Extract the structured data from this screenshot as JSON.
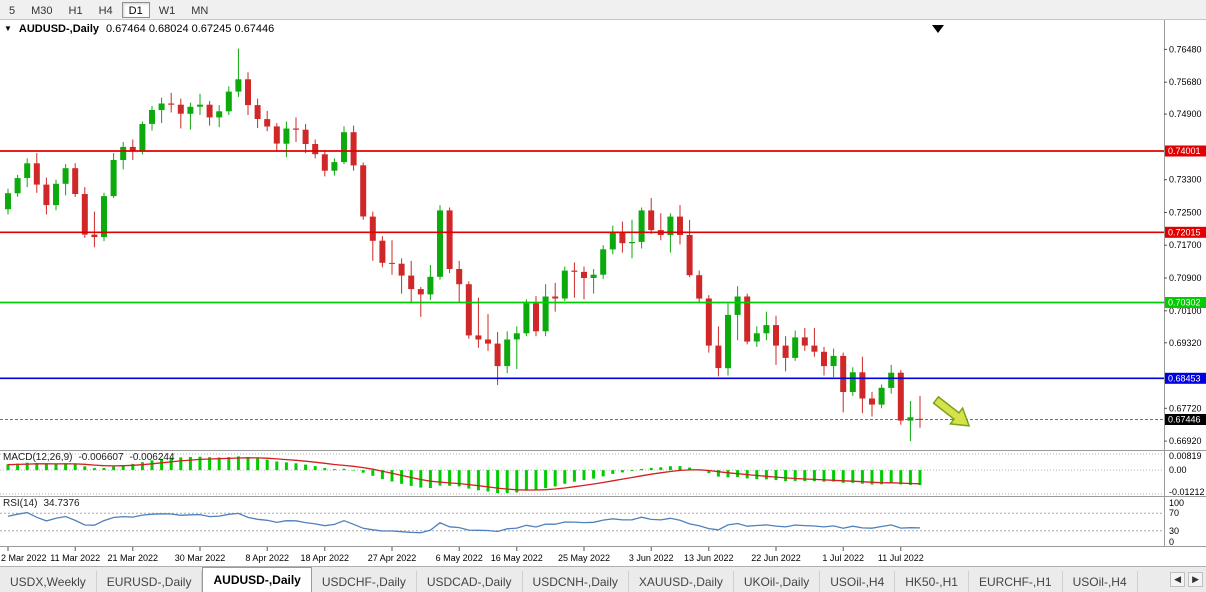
{
  "toolbar": {
    "periods": [
      {
        "label": "5",
        "active": false
      },
      {
        "label": "M30",
        "active": false
      },
      {
        "label": "H1",
        "active": false
      },
      {
        "label": "H4",
        "active": false
      },
      {
        "label": "D1",
        "active": true
      },
      {
        "label": "W1",
        "active": false
      },
      {
        "label": "MN",
        "active": false
      }
    ]
  },
  "chart": {
    "symbol_label": "AUDUSD-,Daily",
    "ohlc_text": "0.67464 0.68024 0.67245 0.67446"
  },
  "colors": {
    "candle_up": "#0caa0c",
    "candle_down": "#d02828",
    "macd_histogram": "#00cc00",
    "macd_signal": "#d42020",
    "rsi_line": "#4f81bd",
    "axis_text": "#000000",
    "badge_text": "#ffffff",
    "bid_line": "#707070",
    "grid_dotted": "#b5b5b5",
    "tick": "#555555"
  },
  "chart_data": {
    "type": "candlestick",
    "title": "AUDUSD-,Daily",
    "ylim": [
      0.668,
      0.771
    ],
    "price_ticks": [
      "0.76480",
      "0.75680",
      "0.74900",
      "0.73300",
      "0.72500",
      "0.71700",
      "0.70900",
      "0.70100",
      "0.69320",
      "0.67720",
      "0.66920"
    ],
    "price_badges": [
      {
        "label": "0.74001",
        "price": 0.74001,
        "color": "#e00000"
      },
      {
        "label": "0.72015",
        "price": 0.72015,
        "color": "#e00000"
      },
      {
        "label": "0.70302",
        "price": 0.70302,
        "color": "#00cc00"
      },
      {
        "label": "0.68453",
        "price": 0.68453,
        "color": "#0000e0"
      },
      {
        "label": "0.67446",
        "price": 0.67446,
        "color": "#000000"
      }
    ],
    "hlines": [
      {
        "price": 0.74001,
        "color": "#e00000"
      },
      {
        "price": 0.72015,
        "color": "#e00000"
      },
      {
        "price": 0.70302,
        "color": "#00cc00"
      },
      {
        "price": 0.68453,
        "color": "#0000e0"
      }
    ],
    "bid_line": {
      "price": 0.67446
    },
    "annotations": [
      {
        "type": "arrow-down-right",
        "x": 936,
        "y": 380,
        "rotation": 38,
        "fill": "#d6e24a",
        "stroke": "#7aa21c"
      }
    ],
    "x_ticks": [
      {
        "label": "2 Mar 2022",
        "i": 0
      },
      {
        "label": "11 Mar 2022",
        "i": 7
      },
      {
        "label": "21 Mar 2022",
        "i": 13
      },
      {
        "label": "30 Mar 2022",
        "i": 20
      },
      {
        "label": "8 Apr 2022",
        "i": 27
      },
      {
        "label": "18 Apr 2022",
        "i": 33
      },
      {
        "label": "27 Apr 2022",
        "i": 40
      },
      {
        "label": "6 May 2022",
        "i": 47
      },
      {
        "label": "16 May 2022",
        "i": 53
      },
      {
        "label": "25 May 2022",
        "i": 60
      },
      {
        "label": "3 Jun 2022",
        "i": 67
      },
      {
        "label": "13 Jun 2022",
        "i": 73
      },
      {
        "label": "22 Jun 2022",
        "i": 80
      },
      {
        "label": "1 Jul 2022",
        "i": 87
      },
      {
        "label": "11 Jul 2022",
        "i": 93
      }
    ],
    "candles": [
      [
        "2022-03-02",
        0.7258,
        0.7308,
        0.7245,
        0.7297
      ],
      [
        "2022-03-03",
        0.7297,
        0.7342,
        0.7288,
        0.7334
      ],
      [
        "2022-03-04",
        0.7334,
        0.7382,
        0.7312,
        0.737
      ],
      [
        "2022-03-07",
        0.737,
        0.7395,
        0.7298,
        0.7318
      ],
      [
        "2022-03-08",
        0.7318,
        0.7335,
        0.7245,
        0.7268
      ],
      [
        "2022-03-09",
        0.7268,
        0.733,
        0.7255,
        0.732
      ],
      [
        "2022-03-10",
        0.732,
        0.7368,
        0.7292,
        0.7358
      ],
      [
        "2022-03-11",
        0.7358,
        0.737,
        0.7288,
        0.7295
      ],
      [
        "2022-03-14",
        0.7295,
        0.7312,
        0.7188,
        0.7196
      ],
      [
        "2022-03-15",
        0.7196,
        0.7252,
        0.7165,
        0.719
      ],
      [
        "2022-03-16",
        0.719,
        0.7298,
        0.718,
        0.729
      ],
      [
        "2022-03-17",
        0.729,
        0.7395,
        0.7285,
        0.7378
      ],
      [
        "2022-03-18",
        0.7378,
        0.7422,
        0.7355,
        0.741
      ],
      [
        "2022-03-21",
        0.741,
        0.7428,
        0.7378,
        0.74
      ],
      [
        "2022-03-22",
        0.74,
        0.7472,
        0.7392,
        0.7466
      ],
      [
        "2022-03-23",
        0.7466,
        0.751,
        0.745,
        0.75
      ],
      [
        "2022-03-24",
        0.75,
        0.753,
        0.7468,
        0.7516
      ],
      [
        "2022-03-25",
        0.7516,
        0.7542,
        0.7494,
        0.7513
      ],
      [
        "2022-03-28",
        0.7513,
        0.7528,
        0.7455,
        0.7491
      ],
      [
        "2022-03-29",
        0.7491,
        0.7518,
        0.7452,
        0.7508
      ],
      [
        "2022-03-30",
        0.7508,
        0.754,
        0.7488,
        0.7513
      ],
      [
        "2022-03-31",
        0.7513,
        0.7522,
        0.7462,
        0.7482
      ],
      [
        "2022-04-01",
        0.7482,
        0.7512,
        0.7458,
        0.7497
      ],
      [
        "2022-04-04",
        0.7497,
        0.7558,
        0.7488,
        0.7545
      ],
      [
        "2022-04-05",
        0.7545,
        0.765,
        0.7532,
        0.7575
      ],
      [
        "2022-04-06",
        0.7575,
        0.7592,
        0.7488,
        0.7512
      ],
      [
        "2022-04-07",
        0.7512,
        0.7528,
        0.7456,
        0.7478
      ],
      [
        "2022-04-08",
        0.7478,
        0.7498,
        0.7448,
        0.746
      ],
      [
        "2022-04-11",
        0.746,
        0.7468,
        0.7398,
        0.7418
      ],
      [
        "2022-04-12",
        0.7418,
        0.7472,
        0.7385,
        0.7455
      ],
      [
        "2022-04-13",
        0.7455,
        0.7482,
        0.7422,
        0.7452
      ],
      [
        "2022-04-14",
        0.7452,
        0.7466,
        0.7395,
        0.7417
      ],
      [
        "2022-04-15",
        0.7417,
        0.7428,
        0.7382,
        0.7392
      ],
      [
        "2022-04-18",
        0.7392,
        0.7402,
        0.7338,
        0.7352
      ],
      [
        "2022-04-19",
        0.7352,
        0.7382,
        0.734,
        0.7373
      ],
      [
        "2022-04-20",
        0.7373,
        0.746,
        0.7368,
        0.7446
      ],
      [
        "2022-04-21",
        0.7446,
        0.7462,
        0.7352,
        0.7365
      ],
      [
        "2022-04-22",
        0.7365,
        0.7372,
        0.7232,
        0.724
      ],
      [
        "2022-04-25",
        0.724,
        0.7252,
        0.7132,
        0.7181
      ],
      [
        "2022-04-26",
        0.7181,
        0.7192,
        0.7116,
        0.7127
      ],
      [
        "2022-04-27",
        0.7127,
        0.7182,
        0.7098,
        0.7125
      ],
      [
        "2022-04-28",
        0.7125,
        0.7138,
        0.7052,
        0.7096
      ],
      [
        "2022-04-29",
        0.7096,
        0.7132,
        0.7028,
        0.7063
      ],
      [
        "2022-05-02",
        0.7063,
        0.7068,
        0.6995,
        0.705
      ],
      [
        "2022-05-03",
        0.705,
        0.7122,
        0.7036,
        0.7093
      ],
      [
        "2022-05-04",
        0.7093,
        0.7268,
        0.7086,
        0.7255
      ],
      [
        "2022-05-05",
        0.7255,
        0.7262,
        0.7102,
        0.7112
      ],
      [
        "2022-05-06",
        0.7112,
        0.7132,
        0.7032,
        0.7075
      ],
      [
        "2022-05-09",
        0.7075,
        0.7082,
        0.6942,
        0.695
      ],
      [
        "2022-05-10",
        0.695,
        0.7042,
        0.692,
        0.694
      ],
      [
        "2022-05-11",
        0.694,
        0.7002,
        0.6912,
        0.693
      ],
      [
        "2022-05-12",
        0.693,
        0.6958,
        0.6829,
        0.6875
      ],
      [
        "2022-05-13",
        0.6875,
        0.696,
        0.6858,
        0.694
      ],
      [
        "2022-05-16",
        0.694,
        0.6972,
        0.6868,
        0.6955
      ],
      [
        "2022-05-17",
        0.6955,
        0.7038,
        0.6948,
        0.7028
      ],
      [
        "2022-05-18",
        0.7028,
        0.7046,
        0.6948,
        0.696
      ],
      [
        "2022-05-19",
        0.696,
        0.7075,
        0.6948,
        0.7045
      ],
      [
        "2022-05-20",
        0.7045,
        0.7078,
        0.7008,
        0.704
      ],
      [
        "2022-05-23",
        0.704,
        0.7118,
        0.7034,
        0.7108
      ],
      [
        "2022-05-24",
        0.7108,
        0.7128,
        0.7042,
        0.7105
      ],
      [
        "2022-05-25",
        0.7105,
        0.7118,
        0.7038,
        0.709
      ],
      [
        "2022-05-26",
        0.709,
        0.7112,
        0.7052,
        0.7098
      ],
      [
        "2022-05-27",
        0.7098,
        0.717,
        0.7088,
        0.716
      ],
      [
        "2022-05-30",
        0.716,
        0.7218,
        0.7148,
        0.72
      ],
      [
        "2022-05-31",
        0.72,
        0.7228,
        0.7152,
        0.7175
      ],
      [
        "2022-06-01",
        0.7175,
        0.7232,
        0.7138,
        0.7178
      ],
      [
        "2022-06-02",
        0.7178,
        0.7262,
        0.7162,
        0.7255
      ],
      [
        "2022-06-03",
        0.7255,
        0.7285,
        0.7198,
        0.7207
      ],
      [
        "2022-06-06",
        0.7207,
        0.7248,
        0.7182,
        0.7195
      ],
      [
        "2022-06-07",
        0.7195,
        0.7248,
        0.7152,
        0.724
      ],
      [
        "2022-06-08",
        0.724,
        0.7268,
        0.7172,
        0.7195
      ],
      [
        "2022-06-09",
        0.7195,
        0.7232,
        0.7092,
        0.7097
      ],
      [
        "2022-06-10",
        0.7097,
        0.7108,
        0.7032,
        0.704
      ],
      [
        "2022-06-13",
        0.704,
        0.7048,
        0.6908,
        0.6925
      ],
      [
        "2022-06-14",
        0.6925,
        0.6972,
        0.685,
        0.687
      ],
      [
        "2022-06-15",
        0.687,
        0.7028,
        0.6852,
        0.7
      ],
      [
        "2022-06-16",
        0.7,
        0.707,
        0.6938,
        0.7045
      ],
      [
        "2022-06-17",
        0.7045,
        0.7052,
        0.6928,
        0.6935
      ],
      [
        "2022-06-20",
        0.6935,
        0.6972,
        0.6922,
        0.6955
      ],
      [
        "2022-06-21",
        0.6955,
        0.7008,
        0.6938,
        0.6975
      ],
      [
        "2022-06-22",
        0.6975,
        0.6998,
        0.6878,
        0.6925
      ],
      [
        "2022-06-23",
        0.6925,
        0.6948,
        0.6862,
        0.6895
      ],
      [
        "2022-06-24",
        0.6895,
        0.6962,
        0.6888,
        0.6945
      ],
      [
        "2022-06-27",
        0.6945,
        0.6968,
        0.6912,
        0.6925
      ],
      [
        "2022-06-28",
        0.6925,
        0.6968,
        0.6898,
        0.691
      ],
      [
        "2022-06-29",
        0.691,
        0.6922,
        0.6852,
        0.6875
      ],
      [
        "2022-06-30",
        0.6875,
        0.6918,
        0.6848,
        0.69
      ],
      [
        "2022-07-01",
        0.69,
        0.6908,
        0.6762,
        0.6812
      ],
      [
        "2022-07-04",
        0.6812,
        0.6872,
        0.6802,
        0.686
      ],
      [
        "2022-07-05",
        0.686,
        0.6898,
        0.676,
        0.6796
      ],
      [
        "2022-07-06",
        0.6796,
        0.6812,
        0.6752,
        0.6781
      ],
      [
        "2022-07-07",
        0.6781,
        0.683,
        0.6772,
        0.6822
      ],
      [
        "2022-07-08",
        0.6822,
        0.6878,
        0.6808,
        0.6859
      ],
      [
        "2022-07-11",
        0.6859,
        0.6865,
        0.6732,
        0.6742
      ],
      [
        "2022-07-12",
        0.6742,
        0.679,
        0.6692,
        0.675
      ],
      [
        "2022-07-13",
        0.67464,
        0.68024,
        0.67245,
        0.67446
      ]
    ]
  },
  "macd": {
    "label": "MACD(12,26,9)",
    "value": "-0.006607",
    "signal_value": "-0.006244",
    "params": [
      12,
      26,
      9
    ],
    "axis": [
      "0.00819",
      "0.00",
      "-0.01212"
    ],
    "range": [
      -0.01212,
      0.00819
    ]
  },
  "rsi": {
    "label": "RSI(14)",
    "value": "34.7376",
    "period": 14,
    "axis": [
      "100",
      "70",
      "30",
      "0"
    ],
    "levels": [
      70,
      30
    ]
  },
  "tabs": {
    "scroll_left_icon": "◀",
    "scroll_right_icon": "▶",
    "items": [
      {
        "label": "USDX,Weekly",
        "active": false
      },
      {
        "label": "EURUSD-,Daily",
        "active": false
      },
      {
        "label": "AUDUSD-,Daily",
        "active": true
      },
      {
        "label": "USDCHF-,Daily",
        "active": false
      },
      {
        "label": "USDCAD-,Daily",
        "active": false
      },
      {
        "label": "USDCNH-,Daily",
        "active": false
      },
      {
        "label": "XAUUSD-,Daily",
        "active": false
      },
      {
        "label": "UKOil-,Daily",
        "active": false
      },
      {
        "label": "USOil-,H4",
        "active": false
      },
      {
        "label": "HK50-,H1",
        "active": false
      },
      {
        "label": "EURCHF-,H1",
        "active": false
      },
      {
        "label": "USOil-,H4",
        "active": false
      }
    ]
  }
}
